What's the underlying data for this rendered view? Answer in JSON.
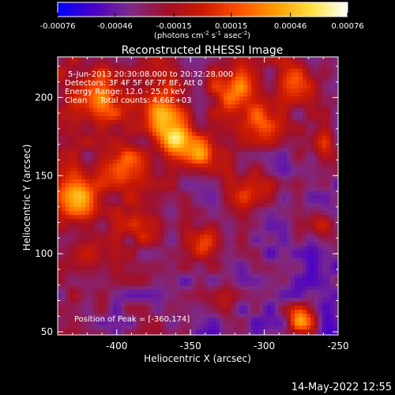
{
  "chart_data": {
    "type": "heatmap",
    "title": "Reconstructed RHESSI Image",
    "xlabel": "Heliocentric X (arcsec)",
    "ylabel": "Heliocentric Y (arcsec)",
    "xlim": [
      -440,
      -250
    ],
    "ylim": [
      48,
      226
    ],
    "x_ticks": [
      -400,
      -350,
      -300,
      -250
    ],
    "x_tick_labels": [
      "-400",
      "-350",
      "-300",
      "-250"
    ],
    "y_ticks": [
      50,
      100,
      150,
      200
    ],
    "y_tick_labels": [
      "50",
      "100",
      "150",
      "200"
    ],
    "colorbar": {
      "range": [
        -0.00076,
        0.00076
      ],
      "ticks": [
        -0.00076,
        -0.00046,
        -0.00015,
        0.00015,
        0.00046,
        0.00076
      ],
      "tick_labels": [
        "-0.00076",
        "-0.00046",
        "-0.00015",
        "0.00015",
        "0.00046",
        "0.00076"
      ],
      "unit_label": "(photons cm-2 s-1 asec-2)",
      "unit_parts": {
        "base1": "(photons cm",
        "exp1": "-2",
        "base2": " s",
        "exp2": "-1",
        "base3": " asec",
        "exp3": "-2",
        "close": ")"
      },
      "colors": [
        "#0000ff",
        "#4a00c8",
        "#7d2a8a",
        "#a0102a",
        "#cc1a00",
        "#ff5000",
        "#ff9a00",
        "#ffe040",
        "#ffffff"
      ]
    },
    "annotations": [
      "5-Jun-2013 20:30:08.000 to 20:32:28.000",
      "Detectors: 3F 4F 5F 6F 7F 8F, Att 0",
      "Energy Range: 12.0 - 25.0 keV",
      "Clean     Total counts: 4.66E+03"
    ],
    "peak_label": "Position of Peak = [-360,174]",
    "peak": [
      -360,
      174
    ],
    "sources": [
      {
        "x": -360,
        "y": 174,
        "amp": 1.0,
        "sigma": 8
      },
      {
        "x": -427,
        "y": 137,
        "amp": 0.9,
        "sigma": 9
      },
      {
        "x": -370,
        "y": 192,
        "amp": 0.72,
        "sigma": 10
      },
      {
        "x": -342,
        "y": 165,
        "amp": 0.65,
        "sigma": 9
      },
      {
        "x": -395,
        "y": 155,
        "amp": 0.6,
        "sigma": 10
      },
      {
        "x": -320,
        "y": 205,
        "amp": 0.62,
        "sigma": 10
      },
      {
        "x": -300,
        "y": 185,
        "amp": 0.58,
        "sigma": 9
      },
      {
        "x": -410,
        "y": 200,
        "amp": 0.55,
        "sigma": 11
      },
      {
        "x": -385,
        "y": 120,
        "amp": 0.5,
        "sigma": 9
      },
      {
        "x": -340,
        "y": 108,
        "amp": 0.55,
        "sigma": 7
      },
      {
        "x": -310,
        "y": 140,
        "amp": 0.45,
        "sigma": 10
      },
      {
        "x": -280,
        "y": 210,
        "amp": 0.5,
        "sigma": 9
      },
      {
        "x": -275,
        "y": 57,
        "amp": 0.82,
        "sigma": 7
      },
      {
        "x": -420,
        "y": 100,
        "amp": 0.35,
        "sigma": 9
      },
      {
        "x": -330,
        "y": 70,
        "amp": 0.3,
        "sigma": 8
      },
      {
        "x": -262,
        "y": 120,
        "amp": 0.4,
        "sigma": 7
      },
      {
        "x": -262,
        "y": 170,
        "amp": 0.38,
        "sigma": 8
      }
    ]
  },
  "footer": {
    "timestamp": "14-May-2022 12:55"
  }
}
